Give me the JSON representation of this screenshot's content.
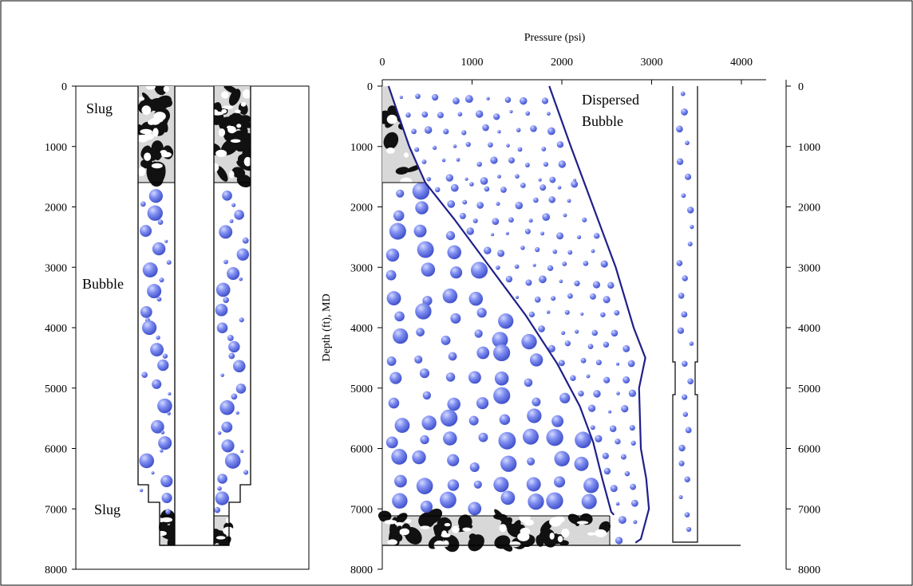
{
  "colors": {
    "bubble": "#6f7fe6",
    "bubble_light": "#c5ccf5",
    "curve": "#1f1f8a",
    "frame": "#000000"
  },
  "labels": {
    "pressure_axis": "Pressure (psi)",
    "depth_axis": "Depth (ft), MD",
    "slug_top": "Slug",
    "bubble_mid": "Bubble",
    "slug_bottom": "Slug",
    "dispersed_line1": "Dispersed",
    "dispersed_line2": "Bubble"
  },
  "chart_data": [
    {
      "type": "line",
      "title": "",
      "xlabel": "Pressure (psi)",
      "ylabel": "Depth (ft), MD",
      "xlim": [
        0,
        4000
      ],
      "ylim": [
        0,
        8000
      ],
      "x_ticks": [
        "0",
        "1000",
        "2000",
        "3000",
        "4000"
      ],
      "y_ticks": [
        "0",
        "1000",
        "2000",
        "3000",
        "4000",
        "5000",
        "6000",
        "7000",
        "8000"
      ],
      "y_inverted": true,
      "series": [
        {
          "points": [
            [
              70,
              0
            ],
            [
              300,
              1000
            ],
            [
              480,
              1600
            ],
            [
              800,
              2200
            ],
            [
              1200,
              3000
            ],
            [
              1600,
              3800
            ],
            [
              1950,
              4600
            ],
            [
              2200,
              5300
            ],
            [
              2350,
              5900
            ],
            [
              2450,
              6500
            ],
            [
              2550,
              7050
            ],
            [
              2580,
              7100
            ]
          ]
        },
        {
          "points": [
            [
              1860,
              0
            ],
            [
              2100,
              1000
            ],
            [
              2350,
              2000
            ],
            [
              2600,
              3000
            ],
            [
              2800,
              4000
            ],
            [
              2930,
              4500
            ],
            [
              2860,
              5000
            ],
            [
              2880,
              6000
            ],
            [
              2940,
              6500
            ],
            [
              2970,
              7000
            ],
            [
              2880,
              7500
            ],
            [
              2820,
              7560
            ]
          ]
        }
      ],
      "regions": [
        {
          "label": "Slug",
          "depth_range": [
            0,
            1600
          ]
        },
        {
          "label": "Bubble",
          "depth_range": [
            1600,
            7100
          ]
        },
        {
          "label": "Slug",
          "depth_range": [
            7100,
            7560
          ]
        },
        {
          "label": "Dispersed Bubble",
          "depth_range": [
            0,
            7560
          ]
        }
      ]
    },
    {
      "type": "table",
      "title": "",
      "ylim": [
        0,
        8000
      ],
      "y_ticks": [
        "0",
        "1000",
        "2000",
        "3000",
        "4000",
        "5000",
        "6000",
        "7000",
        "8000"
      ],
      "regions": [
        {
          "label": "Slug",
          "depth_range": [
            0,
            1600
          ]
        },
        {
          "label": "Bubble",
          "depth_range": [
            1600,
            7100
          ]
        },
        {
          "label": "Slug",
          "depth_range": [
            7100,
            7560
          ]
        }
      ]
    }
  ]
}
